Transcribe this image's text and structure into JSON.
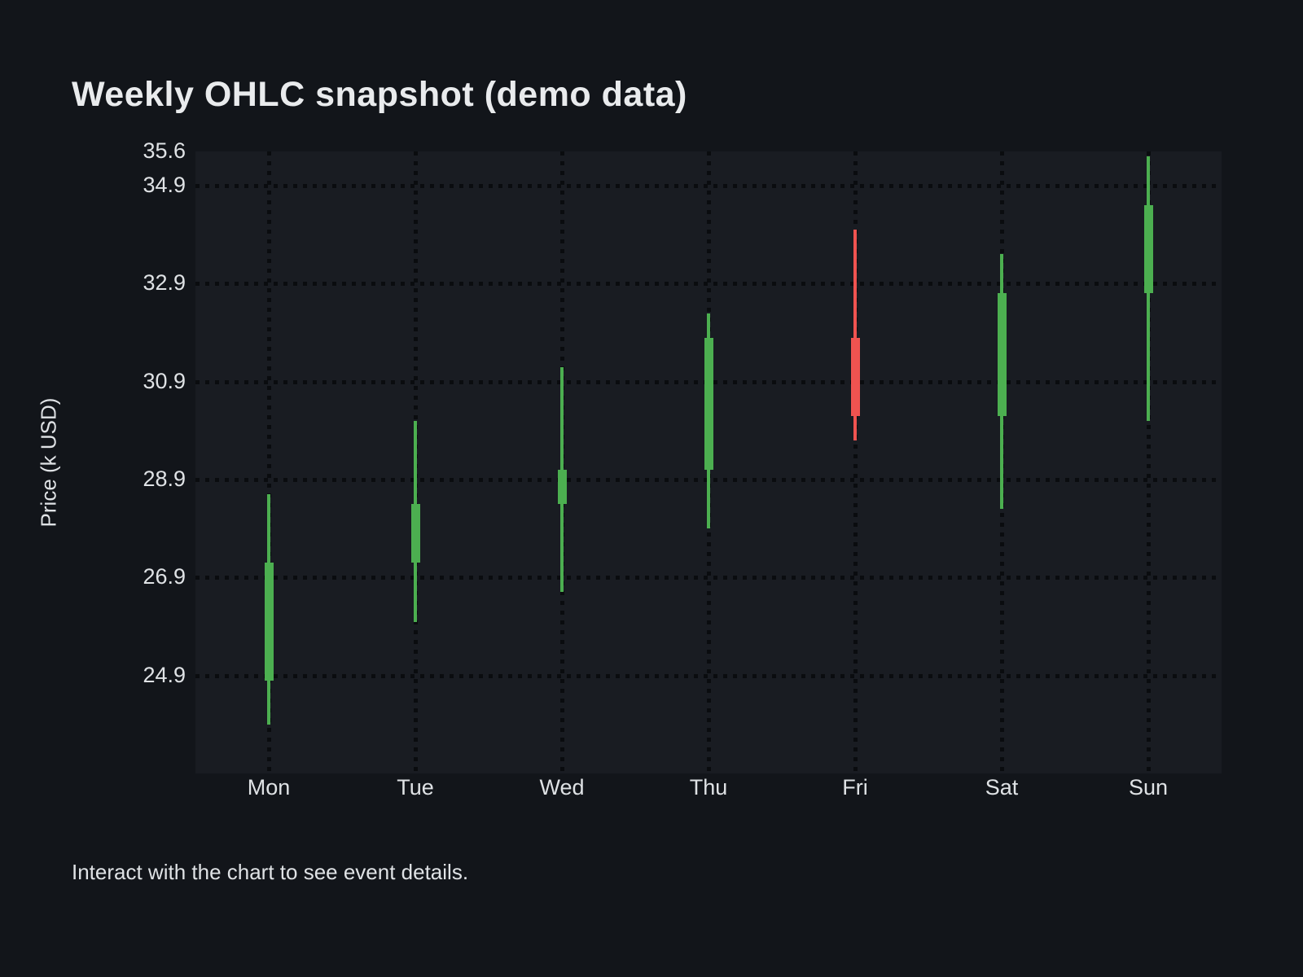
{
  "page": {
    "title": "Weekly OHLC snapshot (demo data)",
    "footer_note": "Interact with the chart to see event details."
  },
  "chart_data": {
    "type": "candlestick",
    "title": "Weekly OHLC snapshot (demo data)",
    "xlabel": "",
    "ylabel": "Price (k USD)",
    "categories": [
      "Mon",
      "Tue",
      "Wed",
      "Thu",
      "Fri",
      "Sat",
      "Sun"
    ],
    "series": [
      {
        "name": "Weekly OHLC",
        "points": [
          {
            "day": "Mon",
            "open": 24.8,
            "high": 28.6,
            "low": 23.9,
            "close": 27.2,
            "direction": "up"
          },
          {
            "day": "Tue",
            "open": 27.2,
            "high": 30.1,
            "low": 26.0,
            "close": 28.4,
            "direction": "up"
          },
          {
            "day": "Wed",
            "open": 28.4,
            "high": 31.2,
            "low": 26.6,
            "close": 29.1,
            "direction": "up"
          },
          {
            "day": "Thu",
            "open": 29.1,
            "high": 32.3,
            "low": 27.9,
            "close": 31.8,
            "direction": "up"
          },
          {
            "day": "Fri",
            "open": 31.8,
            "high": 34.0,
            "low": 29.7,
            "close": 30.2,
            "direction": "down"
          },
          {
            "day": "Sat",
            "open": 30.2,
            "high": 33.5,
            "low": 28.3,
            "close": 32.7,
            "direction": "up"
          },
          {
            "day": "Sun",
            "open": 32.7,
            "high": 35.5,
            "low": 30.1,
            "close": 34.5,
            "direction": "up"
          }
        ]
      }
    ],
    "ylim": [
      22.9,
      35.6
    ],
    "yticks": [
      35.6,
      34.9,
      32.9,
      30.9,
      28.9,
      26.9,
      24.9
    ],
    "grid": "dotted-dark",
    "legend": "none",
    "colors": {
      "up": "#4caf50",
      "down": "#ef5350",
      "grid": "#0a0c0f",
      "plot_bg": "#191c22",
      "page_bg": "#12151a",
      "text": "#dfe2e5",
      "title_text": "#e9ebed"
    }
  }
}
